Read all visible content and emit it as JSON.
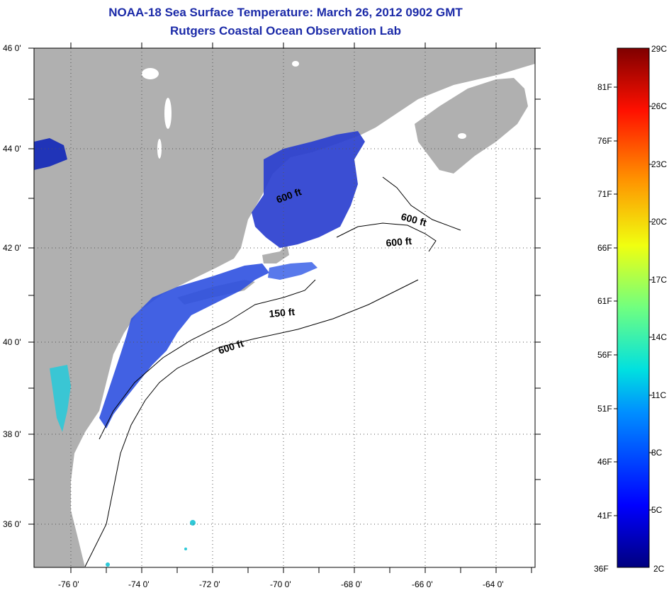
{
  "title_line1": "NOAA-18 Sea Surface Temperature:  March 26, 2012 0902 GMT",
  "title_line2": "Rutgers Coastal Ocean Observation Lab",
  "lat_labels": [
    "46 0'",
    "44 0'",
    "42 0'",
    "40 0'",
    "38 0'",
    "36 0'"
  ],
  "lon_labels": [
    "-76 0'",
    "-74 0'",
    "-72 0'",
    "-70 0'",
    "-68 0'",
    "-66 0'",
    "-64 0'"
  ],
  "contour_labels": [
    "600 ft",
    "600 ft",
    "600 ft",
    "150 ft",
    "600 ft"
  ],
  "colorbar": {
    "fahrenheit": [
      "81F",
      "76F",
      "71F",
      "66F",
      "61F",
      "56F",
      "51F",
      "46F",
      "41F",
      "36F"
    ],
    "celsius": [
      "29C",
      "26C",
      "23C",
      "20C",
      "17C",
      "14C",
      "11C",
      "8C",
      "5C",
      "2C"
    ]
  },
  "colors": {
    "land": "#b0b0b0",
    "title": "#1b2aa8",
    "water_no_data": "#ffffff"
  }
}
